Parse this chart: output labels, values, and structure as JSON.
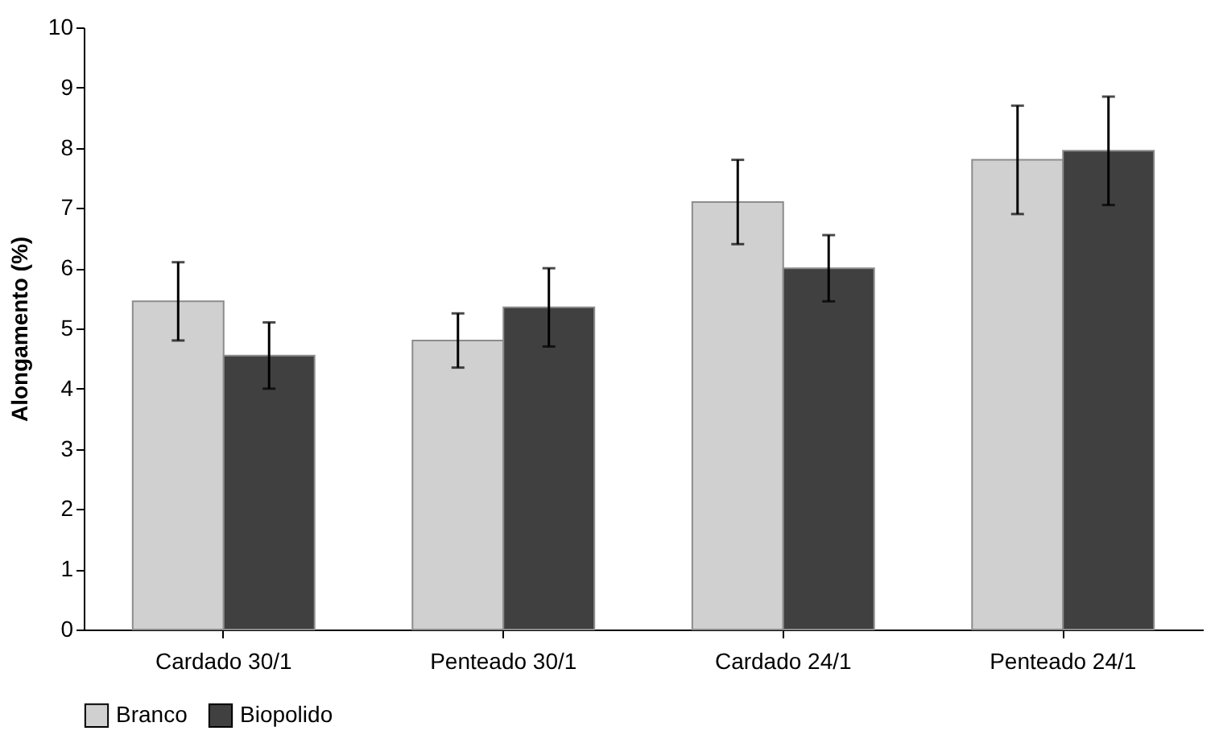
{
  "chart_data": {
    "type": "bar",
    "ylabel": "Alongamento (%)",
    "categories": [
      "Cardado 30/1",
      "Penteado 30/1",
      "Cardado 24/1",
      "Penteado 24/1"
    ],
    "series": [
      {
        "name": "Branco",
        "color": "#d0d0d0",
        "values": [
          5.45,
          4.8,
          7.1,
          7.8
        ],
        "errors": [
          0.65,
          0.45,
          0.7,
          0.9
        ]
      },
      {
        "name": "Biopolido",
        "color": "#404040",
        "values": [
          4.55,
          5.35,
          6.0,
          7.95
        ],
        "errors": [
          0.55,
          0.65,
          0.55,
          0.9
        ]
      }
    ],
    "ylim": [
      0,
      10
    ],
    "yticks": [
      0,
      1,
      2,
      3,
      4,
      5,
      6,
      7,
      8,
      9,
      10
    ],
    "grid": false,
    "legend": "bottom"
  }
}
